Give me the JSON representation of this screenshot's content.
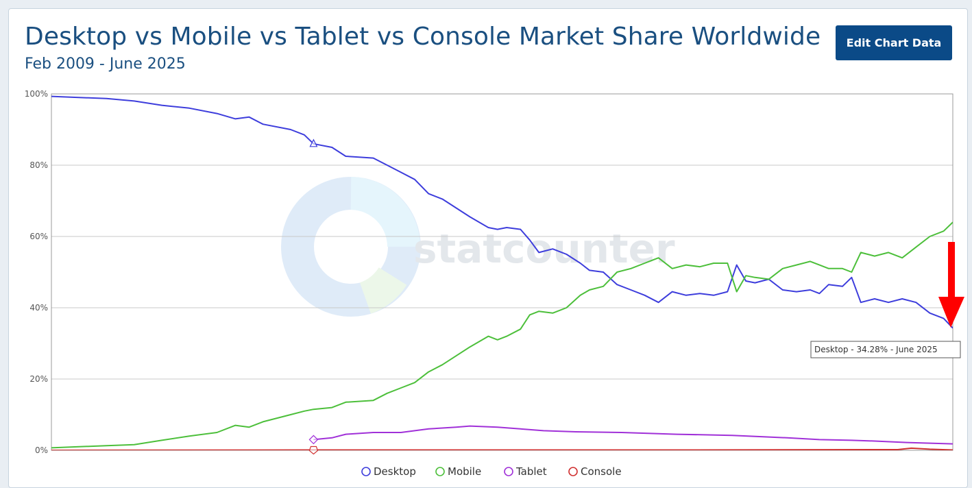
{
  "page": {
    "title": "Desktop vs Mobile vs Tablet vs Console Market Share Worldwide",
    "subtitle": "Feb 2009 - June 2025",
    "edit_button": "Edit Chart Data",
    "watermark": "statcounter",
    "tooltip": "Desktop - 34.28% - June 2025"
  },
  "chart_data": {
    "type": "line",
    "title": "Desktop vs Mobile vs Tablet vs Console Market Share Worldwide",
    "subtitle": "Feb 2009 - June 2025",
    "x_start": "2009-02",
    "x_end": "2025-06",
    "ylim": [
      0,
      100
    ],
    "y_ticks": [
      "0%",
      "20%",
      "40%",
      "60%",
      "80%",
      "100%"
    ],
    "grid": true,
    "legend_position": "bottom",
    "series": [
      {
        "name": "Desktop",
        "color": "#3d3ddc",
        "points": [
          [
            "2009-02",
            99.3
          ],
          [
            "2009-08",
            99.0
          ],
          [
            "2010-02",
            98.7
          ],
          [
            "2010-08",
            98.0
          ],
          [
            "2011-02",
            96.8
          ],
          [
            "2011-08",
            96.0
          ],
          [
            "2012-02",
            94.5
          ],
          [
            "2012-06",
            93.0
          ],
          [
            "2012-09",
            93.5
          ],
          [
            "2012-12",
            91.5
          ],
          [
            "2013-06",
            90.0
          ],
          [
            "2013-09",
            88.5
          ],
          [
            "2013-11",
            86.0
          ],
          [
            "2014-03",
            85.0
          ],
          [
            "2014-06",
            82.5
          ],
          [
            "2014-12",
            82.0
          ],
          [
            "2015-03",
            80.0
          ],
          [
            "2015-06",
            78.0
          ],
          [
            "2015-09",
            76.0
          ],
          [
            "2015-12",
            72.0
          ],
          [
            "2016-03",
            70.5
          ],
          [
            "2016-06",
            68.0
          ],
          [
            "2016-09",
            65.5
          ],
          [
            "2017-01",
            62.5
          ],
          [
            "2017-03",
            62.0
          ],
          [
            "2017-05",
            62.5
          ],
          [
            "2017-08",
            62.0
          ],
          [
            "2017-10",
            59.0
          ],
          [
            "2017-12",
            55.5
          ],
          [
            "2018-03",
            56.5
          ],
          [
            "2018-06",
            55.0
          ],
          [
            "2018-09",
            52.5
          ],
          [
            "2018-11",
            50.5
          ],
          [
            "2019-02",
            50.0
          ],
          [
            "2019-05",
            46.5
          ],
          [
            "2019-08",
            45.0
          ],
          [
            "2019-11",
            43.5
          ],
          [
            "2020-02",
            41.5
          ],
          [
            "2020-05",
            44.5
          ],
          [
            "2020-08",
            43.5
          ],
          [
            "2020-11",
            44.0
          ],
          [
            "2021-02",
            43.5
          ],
          [
            "2021-05",
            44.5
          ],
          [
            "2021-07",
            52.0
          ],
          [
            "2021-09",
            47.5
          ],
          [
            "2021-11",
            47.0
          ],
          [
            "2022-02",
            48.0
          ],
          [
            "2022-05",
            45.0
          ],
          [
            "2022-08",
            44.5
          ],
          [
            "2022-11",
            45.0
          ],
          [
            "2023-01",
            44.0
          ],
          [
            "2023-03",
            46.5
          ],
          [
            "2023-06",
            46.0
          ],
          [
            "2023-08",
            48.5
          ],
          [
            "2023-10",
            41.5
          ],
          [
            "2024-01",
            42.5
          ],
          [
            "2024-04",
            41.5
          ],
          [
            "2024-07",
            42.5
          ],
          [
            "2024-10",
            41.5
          ],
          [
            "2025-01",
            38.5
          ],
          [
            "2025-04",
            37.0
          ],
          [
            "2025-06",
            34.28
          ]
        ]
      },
      {
        "name": "Mobile",
        "color": "#4cbf3a",
        "points": [
          [
            "2009-02",
            0.7
          ],
          [
            "2009-08",
            1.0
          ],
          [
            "2010-02",
            1.3
          ],
          [
            "2010-08",
            1.6
          ],
          [
            "2011-02",
            2.8
          ],
          [
            "2011-08",
            4.0
          ],
          [
            "2012-02",
            5.0
          ],
          [
            "2012-06",
            7.0
          ],
          [
            "2012-09",
            6.5
          ],
          [
            "2012-12",
            8.0
          ],
          [
            "2013-06",
            10.0
          ],
          [
            "2013-09",
            11.0
          ],
          [
            "2013-11",
            11.5
          ],
          [
            "2014-03",
            12.0
          ],
          [
            "2014-06",
            13.5
          ],
          [
            "2014-12",
            14.0
          ],
          [
            "2015-03",
            16.0
          ],
          [
            "2015-06",
            17.5
          ],
          [
            "2015-09",
            19.0
          ],
          [
            "2015-12",
            22.0
          ],
          [
            "2016-03",
            24.0
          ],
          [
            "2016-06",
            26.5
          ],
          [
            "2016-09",
            29.0
          ],
          [
            "2017-01",
            32.0
          ],
          [
            "2017-03",
            31.0
          ],
          [
            "2017-05",
            32.0
          ],
          [
            "2017-08",
            34.0
          ],
          [
            "2017-10",
            38.0
          ],
          [
            "2017-12",
            39.0
          ],
          [
            "2018-03",
            38.5
          ],
          [
            "2018-06",
            40.0
          ],
          [
            "2018-09",
            43.5
          ],
          [
            "2018-11",
            45.0
          ],
          [
            "2019-02",
            46.0
          ],
          [
            "2019-05",
            50.0
          ],
          [
            "2019-08",
            51.0
          ],
          [
            "2019-11",
            52.5
          ],
          [
            "2020-02",
            54.0
          ],
          [
            "2020-05",
            51.0
          ],
          [
            "2020-08",
            52.0
          ],
          [
            "2020-11",
            51.5
          ],
          [
            "2021-02",
            52.5
          ],
          [
            "2021-05",
            52.5
          ],
          [
            "2021-07",
            44.5
          ],
          [
            "2021-09",
            49.0
          ],
          [
            "2021-11",
            48.5
          ],
          [
            "2022-02",
            48.0
          ],
          [
            "2022-05",
            51.0
          ],
          [
            "2022-08",
            52.0
          ],
          [
            "2022-11",
            53.0
          ],
          [
            "2023-01",
            52.0
          ],
          [
            "2023-03",
            51.0
          ],
          [
            "2023-06",
            51.0
          ],
          [
            "2023-08",
            50.0
          ],
          [
            "2023-10",
            55.5
          ],
          [
            "2024-01",
            54.5
          ],
          [
            "2024-04",
            55.5
          ],
          [
            "2024-07",
            54.0
          ],
          [
            "2024-10",
            57.0
          ],
          [
            "2025-01",
            60.0
          ],
          [
            "2025-04",
            61.5
          ],
          [
            "2025-06",
            64.0
          ]
        ]
      },
      {
        "name": "Tablet",
        "color": "#a030d8",
        "points": [
          [
            "2013-11",
            3.0
          ],
          [
            "2014-03",
            3.5
          ],
          [
            "2014-06",
            4.5
          ],
          [
            "2014-12",
            5.0
          ],
          [
            "2015-06",
            5.0
          ],
          [
            "2015-12",
            6.0
          ],
          [
            "2016-06",
            6.5
          ],
          [
            "2016-09",
            6.8
          ],
          [
            "2017-03",
            6.5
          ],
          [
            "2017-08",
            6.0
          ],
          [
            "2018-01",
            5.5
          ],
          [
            "2018-08",
            5.2
          ],
          [
            "2019-06",
            5.0
          ],
          [
            "2020-06",
            4.5
          ],
          [
            "2021-06",
            4.2
          ],
          [
            "2022-06",
            3.5
          ],
          [
            "2023-01",
            3.0
          ],
          [
            "2023-08",
            2.8
          ],
          [
            "2024-01",
            2.6
          ],
          [
            "2024-08",
            2.2
          ],
          [
            "2025-01",
            2.0
          ],
          [
            "2025-06",
            1.8
          ]
        ]
      },
      {
        "name": "Console",
        "color": "#d03030",
        "points": [
          [
            "2009-02",
            0.0
          ],
          [
            "2013-11",
            0.1
          ],
          [
            "2016-01",
            0.1
          ],
          [
            "2020-06",
            0.1
          ],
          [
            "2024-06",
            0.2
          ],
          [
            "2024-09",
            0.6
          ],
          [
            "2025-01",
            0.3
          ],
          [
            "2025-06",
            0.1
          ]
        ]
      }
    ]
  }
}
